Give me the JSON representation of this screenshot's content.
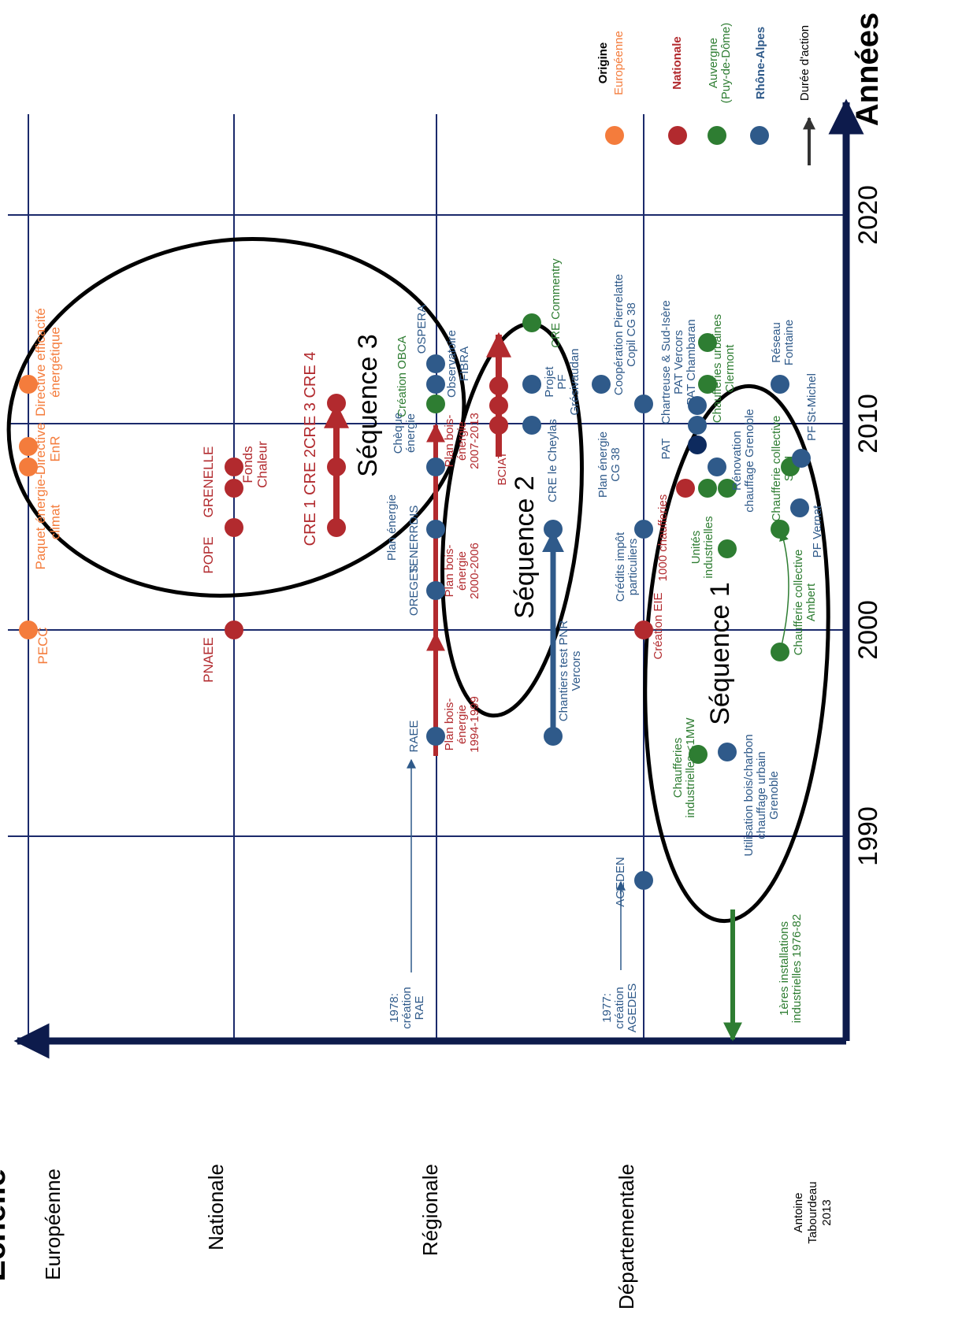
{
  "title_scale": "Échelle",
  "title_years": "Années",
  "credit": [
    "Antoine",
    "Tabourdeau",
    "2013"
  ],
  "years": [
    "1990",
    "2000",
    "2010",
    "2020"
  ],
  "scales": [
    "Européenne",
    "Nationale",
    "Régionale",
    "Départementale"
  ],
  "legend": {
    "heading": "Origine",
    "duration": "Durée d'action",
    "items": [
      {
        "label": [
          "Européenne"
        ],
        "color": "#f47c3c",
        "bold": false
      },
      {
        "label": [
          "Nationale"
        ],
        "color": "#b22a2e",
        "bold": true
      },
      {
        "label": [
          "Auvergne",
          "(Puy-de-Dôme)"
        ],
        "color": "#2e7d32",
        "bold": false
      },
      {
        "label": [
          "Rhône-Alpes"
        ],
        "color": "#2f5a8a",
        "bold": true
      }
    ]
  },
  "sequences": [
    "Séquence 1",
    "Séquence 2",
    "Séquence 3"
  ],
  "events": {
    "eu_pecc": "PECC",
    "eu_paquet": [
      "Paquet énergie-",
      "climat"
    ],
    "eu_directive_enr": [
      "Directive",
      "EnR"
    ],
    "eu_directive_eff": [
      "Directive efficacité",
      "énergétique"
    ],
    "nat_pnaee": "PNAEE",
    "nat_pope": "POPE",
    "nat_grenelle": "GRENELLE",
    "nat_fonds": [
      "Fonds",
      "Chaleur"
    ],
    "nat_cre": "CRE 1  CRE 2CRE 3  CRE 4",
    "reg_raee": "RAEE",
    "reg_1978": [
      "1978:",
      "création",
      "RAE"
    ],
    "reg_plan9499": [
      "Plan bois-",
      "énergie",
      "1994-1999"
    ],
    "reg_oreges": "OREGES",
    "reg_tenerrdis": "TENERRDIS",
    "reg_plan0006": [
      "Plan bois-",
      "énergie",
      "2000-2006"
    ],
    "reg_plan_energie": "Plan énergie",
    "reg_plan0713": [
      "Plan bois-",
      "énergie",
      "2007-2013"
    ],
    "reg_cheque": [
      "Chèque",
      "énergie"
    ],
    "reg_obca": "Création OBCA",
    "reg_ospera": "OSPERA",
    "reg_observatoire": [
      "Observatoire",
      "FIBRA"
    ],
    "reg_bciat": "BCIAT",
    "s2_chantiers": [
      "Chantiers test PNR",
      "Vercors"
    ],
    "s2_cre_cheylas": "CRE le Cheylas",
    "s2_projet_pf": [
      "Projet",
      "PF",
      "Grésivaudan"
    ],
    "s2_cre_commentry": "CRE Commentry",
    "dep_1977": [
      "1977:",
      "création",
      "AGEDES"
    ],
    "dep_ageden": "AGEDEN",
    "dep_creation_eie": "Création EIE",
    "dep_1000": "1000 chaufferies",
    "dep_credits": [
      "Crédits impôt",
      "particuliers"
    ],
    "dep_plan_cg38": [
      "Plan énergie",
      "CG 38"
    ],
    "dep_cooperation": [
      "Coopération Pierrelatte",
      "Copil CG 38"
    ],
    "dep_pat": "PAT",
    "dep_pat_list": [
      "Chartreuse & Sud-Isère",
      "PAT Vercors",
      "PAT Chambaran"
    ],
    "s1_premieres": [
      "1ères installations",
      "industrielles 1976-82"
    ],
    "s1_chaufferies_ind": [
      "Chaufferies",
      "industrielles <1MW"
    ],
    "s1_utilisation": [
      "Utilisation bois/charbon",
      "chauffage urbain",
      "Grenoble"
    ],
    "s1_ambert": [
      "Chaufferie collective",
      "Ambert"
    ],
    "s1_unites": [
      "Unités",
      "industrielles"
    ],
    "s1_sgh": [
      "Chaufferie collective",
      "SGH"
    ],
    "s1_pf_vernat": "PF Vernat",
    "s1_renovation": [
      "Rénovation",
      "chauffage Grenoble"
    ],
    "s1_pf_stmichel": "PF St-Michel",
    "s1_urbaines": [
      "Chaufferies urbaines",
      "Clermont"
    ],
    "s1_reseau": [
      "Réseau",
      "Fontaine"
    ]
  }
}
